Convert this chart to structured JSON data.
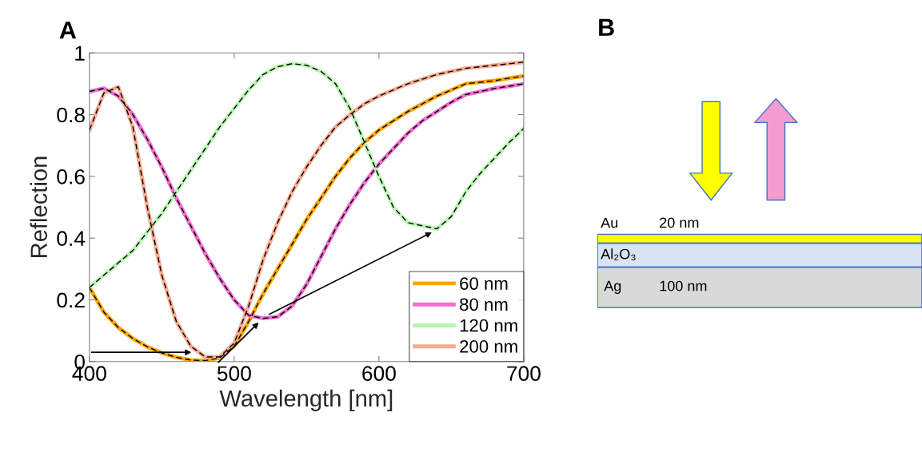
{
  "chart_data": [
    {
      "type": "line",
      "title": "A",
      "xlabel": "Wavelength [nm]",
      "ylabel": "Reflection",
      "x": [
        400,
        410,
        420,
        430,
        440,
        450,
        460,
        470,
        480,
        490,
        500,
        510,
        520,
        530,
        540,
        550,
        560,
        570,
        580,
        590,
        600,
        610,
        620,
        630,
        640,
        650,
        660,
        670,
        680,
        690,
        700
      ],
      "series": [
        {
          "name": "60 nm",
          "color": "#ffa500",
          "values": [
            0.24,
            0.16,
            0.11,
            0.075,
            0.048,
            0.028,
            0.014,
            0.005,
            0.003,
            0.012,
            0.05,
            0.13,
            0.22,
            0.3,
            0.38,
            0.46,
            0.53,
            0.6,
            0.66,
            0.71,
            0.75,
            0.78,
            0.81,
            0.835,
            0.86,
            0.88,
            0.9,
            0.905,
            0.91,
            0.918,
            0.925
          ]
        },
        {
          "name": "80 nm",
          "color": "#ef6fcf",
          "values": [
            0.875,
            0.885,
            0.86,
            0.8,
            0.72,
            0.63,
            0.53,
            0.44,
            0.35,
            0.27,
            0.2,
            0.15,
            0.14,
            0.145,
            0.18,
            0.25,
            0.34,
            0.43,
            0.51,
            0.58,
            0.64,
            0.69,
            0.74,
            0.78,
            0.81,
            0.84,
            0.865,
            0.875,
            0.885,
            0.892,
            0.9
          ]
        },
        {
          "name": "120 nm",
          "color": "#b8f5b0",
          "values": [
            0.24,
            0.28,
            0.32,
            0.36,
            0.42,
            0.48,
            0.55,
            0.62,
            0.69,
            0.76,
            0.82,
            0.88,
            0.93,
            0.955,
            0.965,
            0.96,
            0.94,
            0.9,
            0.82,
            0.71,
            0.6,
            0.5,
            0.45,
            0.44,
            0.43,
            0.47,
            0.55,
            0.61,
            0.66,
            0.71,
            0.755
          ]
        },
        {
          "name": "200 nm",
          "color": "#f9ab8f",
          "values": [
            0.75,
            0.87,
            0.89,
            0.76,
            0.5,
            0.28,
            0.13,
            0.05,
            0.015,
            0.015,
            0.06,
            0.18,
            0.33,
            0.45,
            0.55,
            0.63,
            0.7,
            0.76,
            0.8,
            0.835,
            0.86,
            0.88,
            0.9,
            0.915,
            0.93,
            0.94,
            0.95,
            0.955,
            0.96,
            0.965,
            0.97
          ]
        },
        {
          "color": "#000000",
          "line_style": "dashed",
          "values": [
            0.24,
            0.16,
            0.11,
            0.075,
            0.048,
            0.028,
            0.014,
            0.005,
            0.003,
            0.012,
            0.05,
            0.13,
            0.22,
            0.3,
            0.38,
            0.46,
            0.53,
            0.6,
            0.66,
            0.71,
            0.75,
            0.78,
            0.81,
            0.835,
            0.86,
            0.88,
            0.9,
            0.905,
            0.91,
            0.918,
            0.925
          ]
        },
        {
          "color": "#000000",
          "line_style": "dashed",
          "values": [
            0.875,
            0.885,
            0.86,
            0.8,
            0.72,
            0.63,
            0.53,
            0.44,
            0.35,
            0.27,
            0.2,
            0.15,
            0.14,
            0.145,
            0.18,
            0.25,
            0.34,
            0.43,
            0.51,
            0.58,
            0.64,
            0.69,
            0.74,
            0.78,
            0.81,
            0.84,
            0.865,
            0.875,
            0.885,
            0.892,
            0.9
          ]
        },
        {
          "color": "#000000",
          "line_style": "dashed",
          "values": [
            0.24,
            0.28,
            0.32,
            0.36,
            0.42,
            0.48,
            0.55,
            0.62,
            0.69,
            0.76,
            0.82,
            0.88,
            0.93,
            0.955,
            0.965,
            0.96,
            0.94,
            0.9,
            0.82,
            0.71,
            0.6,
            0.5,
            0.45,
            0.44,
            0.43,
            0.47,
            0.55,
            0.61,
            0.66,
            0.71,
            0.755
          ]
        },
        {
          "color": "#000000",
          "line_style": "dashed",
          "values": [
            0.75,
            0.87,
            0.89,
            0.76,
            0.5,
            0.28,
            0.13,
            0.05,
            0.015,
            0.015,
            0.06,
            0.18,
            0.33,
            0.45,
            0.55,
            0.63,
            0.7,
            0.76,
            0.8,
            0.835,
            0.86,
            0.88,
            0.9,
            0.915,
            0.93,
            0.94,
            0.95,
            0.955,
            0.96,
            0.965,
            0.97
          ]
        }
      ],
      "xlim": [
        400,
        700
      ],
      "xticks": [
        400,
        500,
        600,
        700
      ],
      "ylim": [
        0,
        1
      ],
      "yticks": [
        0,
        0.2,
        0.4,
        0.6,
        0.8,
        1
      ],
      "legend": "bottom right",
      "grid": false,
      "line_style": "solid"
    },
    {
      "type": "other",
      "title": "B",
      "annotations": [
        "Au",
        "20 nm",
        "Al₂O₃",
        "Ag",
        "100 nm"
      ]
    }
  ]
}
